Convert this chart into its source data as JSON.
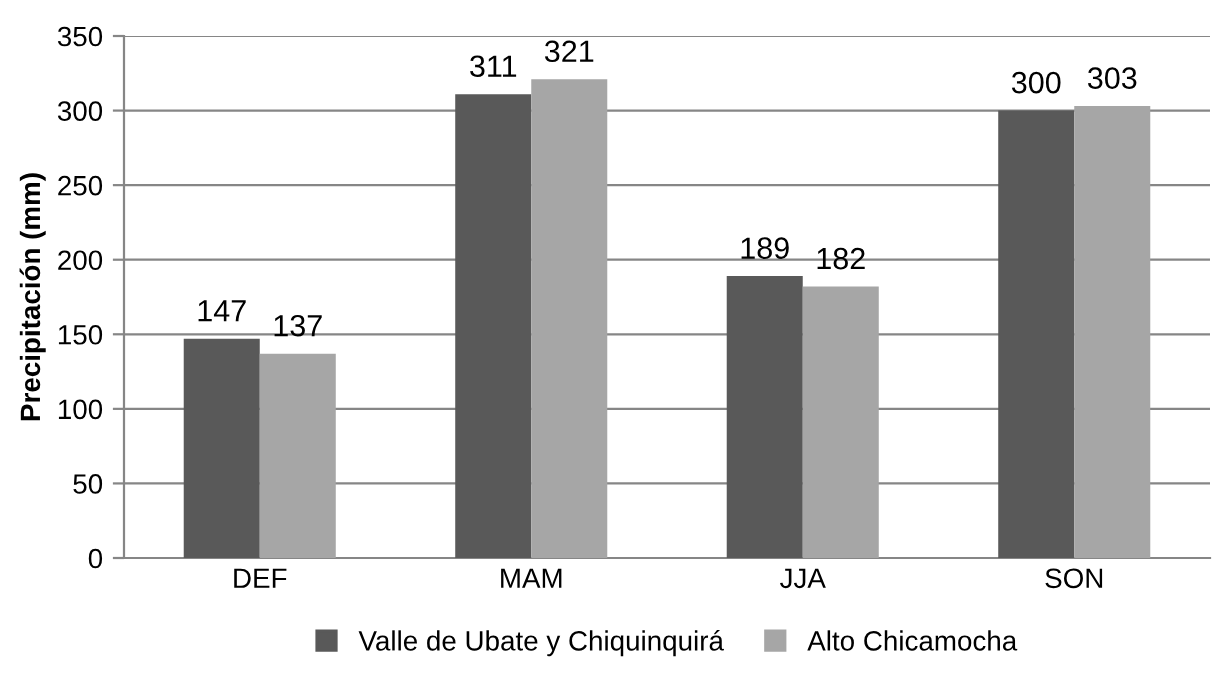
{
  "chart_data": {
    "type": "bar",
    "ylabel": "Precipitación (mm)",
    "categories": [
      "DEF",
      "MAM",
      "JJA",
      "SON"
    ],
    "series": [
      {
        "name": "Valle de Ubate y Chiquinquirá",
        "color": "#595959",
        "values": [
          147,
          311,
          189,
          300
        ]
      },
      {
        "name": "Alto Chicamocha",
        "color": "#a6a6a6",
        "values": [
          137,
          321,
          182,
          303
        ]
      }
    ],
    "ylim": [
      0,
      350
    ],
    "yticks": [
      0,
      50,
      100,
      150,
      200,
      250,
      300,
      350
    ],
    "grid": "y",
    "legend": "bottom",
    "data_labels": true
  }
}
